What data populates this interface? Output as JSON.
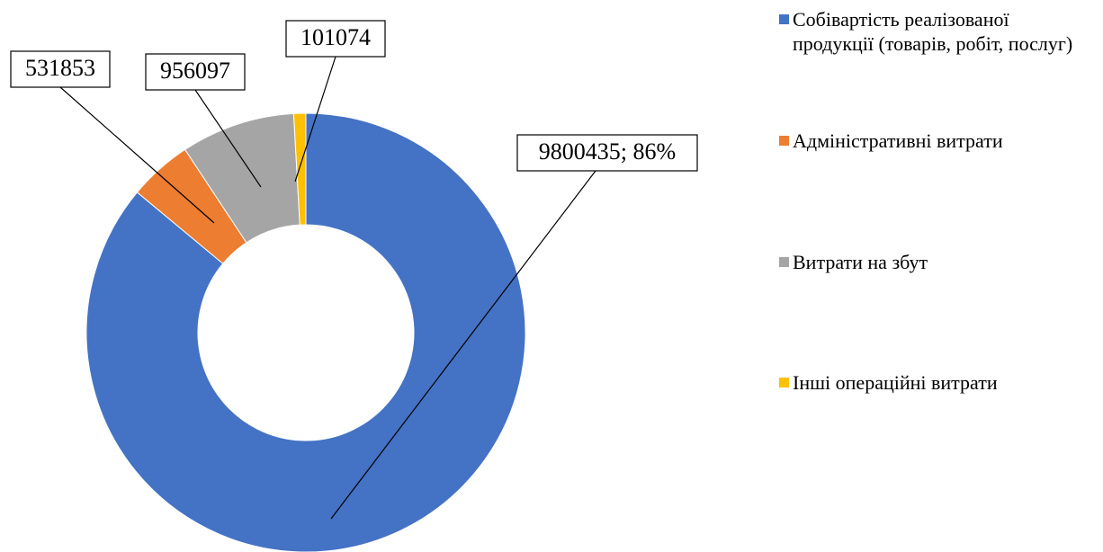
{
  "chart_data": {
    "type": "donut",
    "categories": [
      "Собівартість реалізованої продукції (товарів, робіт, послуг)",
      "Адміністративні витрати",
      "Витрати на збут",
      "Інші операційні витрати"
    ],
    "values": [
      9800435,
      531853,
      956097,
      101074
    ],
    "value_labels": [
      "9800435; 86%",
      "531853",
      "956097",
      "101074"
    ],
    "colors": [
      "#4472c4",
      "#ed7d31",
      "#a5a5a5",
      "#ffc000"
    ],
    "legend": "right"
  }
}
